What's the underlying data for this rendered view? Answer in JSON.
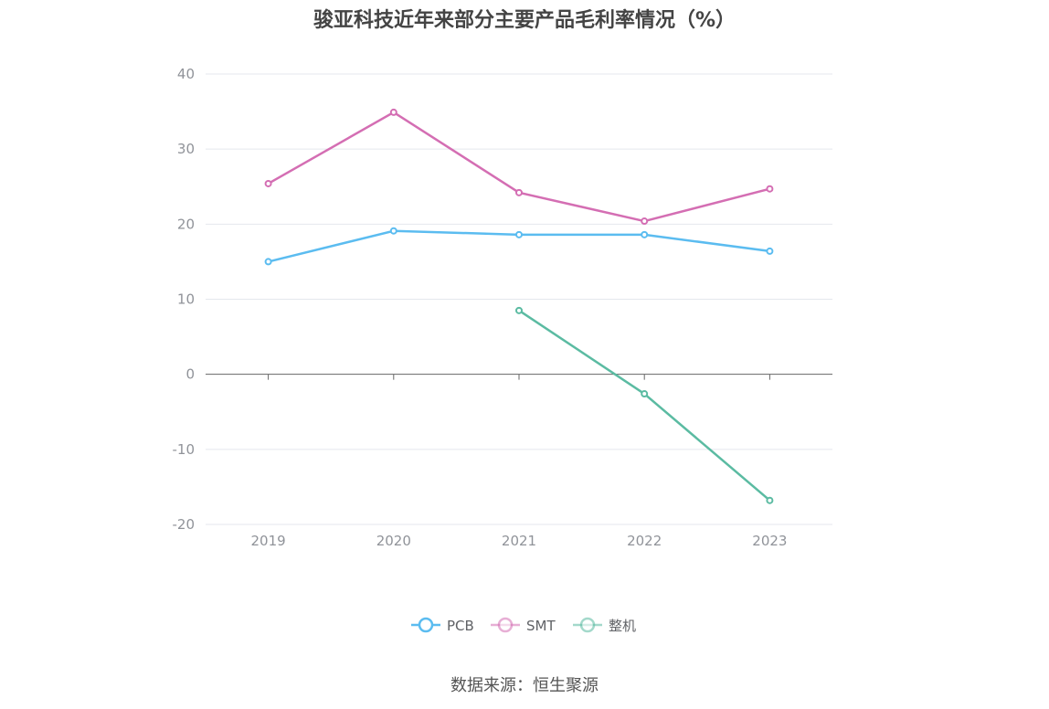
{
  "title": "骏亚科技近年来部分主要产品毛利率情况（%）",
  "source": "数据来源：恒生聚源",
  "colors": {
    "PCB": "#5bbcf0",
    "SMT": "#d46eb3",
    "整机": "#5bbba2",
    "grid": "#e4e7ed",
    "axis": "#666666"
  },
  "chart_data": {
    "type": "line",
    "title": "骏亚科技近年来部分主要产品毛利率情况（%）",
    "categories": [
      "2019",
      "2020",
      "2021",
      "2022",
      "2023"
    ],
    "ylim": [
      -20,
      40
    ],
    "yticks": [
      "40",
      "30",
      "20",
      "10",
      "0",
      "-10",
      "-20"
    ],
    "grid": true,
    "legend_position": "bottom-center",
    "series": [
      {
        "name": "PCB",
        "values": [
          15.0,
          19.1,
          18.6,
          18.6,
          16.4
        ]
      },
      {
        "name": "SMT",
        "values": [
          25.4,
          34.9,
          24.2,
          20.4,
          24.7
        ]
      },
      {
        "name": "整机",
        "values": [
          null,
          null,
          8.5,
          -2.6,
          -16.8
        ]
      }
    ]
  }
}
